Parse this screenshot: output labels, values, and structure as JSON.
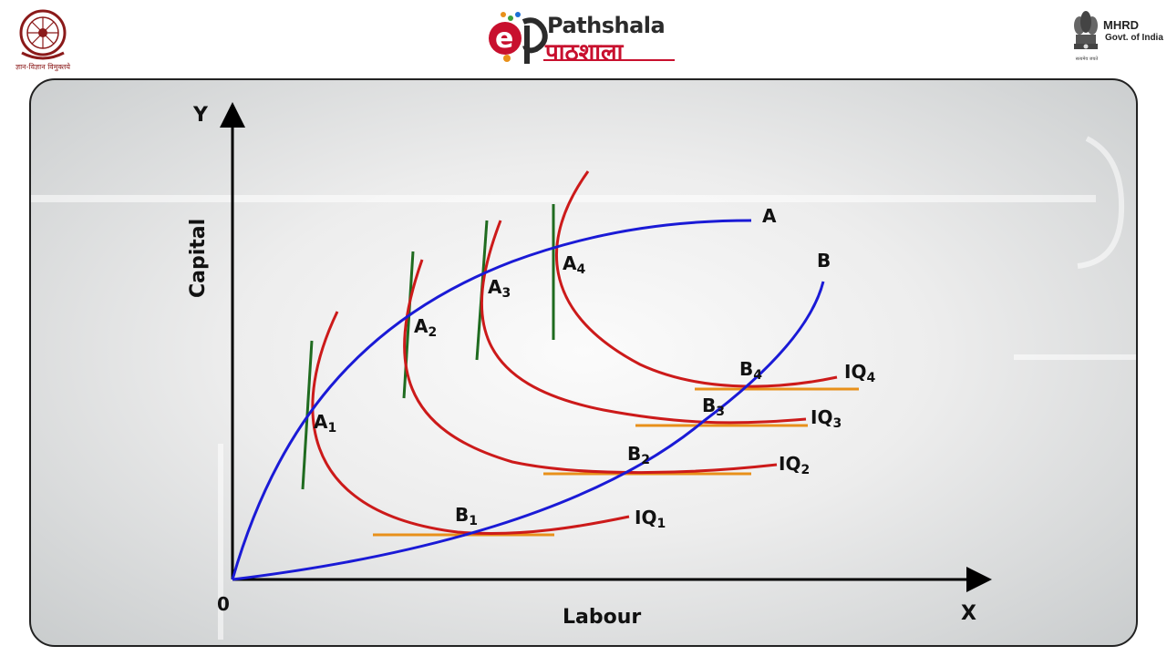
{
  "header": {
    "ugc_tagline": "ज्ञान-विज्ञान विमुक्तये",
    "epg_english": "Pathshala",
    "epg_hindi": "पाठशाला",
    "mhrd_title": "MHRD",
    "mhrd_subtitle": "Govt. of India",
    "mhrd_motto": "सत्यमेव जयते"
  },
  "diagram": {
    "y_axis_letter": "Y",
    "x_axis_letter": "X",
    "origin_label": "0",
    "y_axis_title": "Capital",
    "x_axis_title": "Labour",
    "expansion_paths": [
      {
        "label": "A",
        "color": "#1a1ad6"
      },
      {
        "label": "B",
        "color": "#1a1ad6"
      }
    ],
    "isoquants": [
      {
        "label": "IQ",
        "sub": "1",
        "color": "#cc1a1a"
      },
      {
        "label": "IQ",
        "sub": "2",
        "color": "#cc1a1a"
      },
      {
        "label": "IQ",
        "sub": "3",
        "color": "#cc1a1a"
      },
      {
        "label": "IQ",
        "sub": "4",
        "color": "#cc1a1a"
      }
    ],
    "points_a": [
      {
        "label": "A",
        "sub": "1"
      },
      {
        "label": "A",
        "sub": "2"
      },
      {
        "label": "A",
        "sub": "3"
      },
      {
        "label": "A",
        "sub": "4"
      }
    ],
    "points_b": [
      {
        "label": "B",
        "sub": "1"
      },
      {
        "label": "B",
        "sub": "2"
      },
      {
        "label": "B",
        "sub": "3"
      },
      {
        "label": "B",
        "sub": "4"
      }
    ],
    "colors": {
      "isocost_steep": "#1f6b1f",
      "isocost_flat": "#e8901a",
      "axis": "#000000"
    }
  }
}
